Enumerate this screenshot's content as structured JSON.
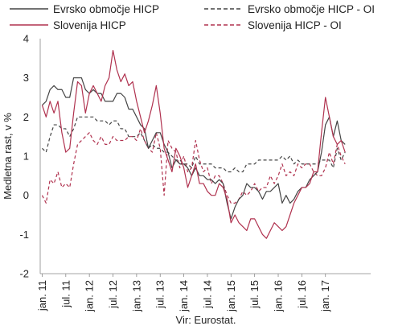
{
  "chart_data": {
    "type": "line",
    "ylabel": "Medletna rast, v %",
    "source": "Vir: Eurostat.",
    "ylim": [
      -2,
      4
    ],
    "yticks": [
      -2,
      -1,
      0,
      1,
      2,
      3,
      4
    ],
    "xlim": [
      "2011-01",
      "2017-12"
    ],
    "xticks": [
      "jan. 11",
      "jul. 11",
      "jan. 12",
      "jul. 12",
      "jan. 13",
      "jul. 13",
      "jan. 14",
      "jul. 14",
      "jan. 15",
      "jul. 15",
      "jan. 16",
      "jul. 16",
      "jan. 17"
    ],
    "legend_position": "top",
    "grid": false,
    "colors": {
      "euro": "#444444",
      "slovenia": "#b0324f"
    },
    "series": [
      {
        "name": "Evrsko območje HICP",
        "style": "solid",
        "color": "#444444",
        "values": [
          2.3,
          2.4,
          2.7,
          2.8,
          2.7,
          2.7,
          2.5,
          2.5,
          3.0,
          3.0,
          3.0,
          2.7,
          2.6,
          2.7,
          2.6,
          2.6,
          2.4,
          2.4,
          2.4,
          2.6,
          2.6,
          2.5,
          2.2,
          2.2,
          2.0,
          1.8,
          1.7,
          1.2,
          1.4,
          1.6,
          1.6,
          1.3,
          1.1,
          0.7,
          0.9,
          0.8,
          0.8,
          0.7,
          0.5,
          0.7,
          0.5,
          0.5,
          0.4,
          0.4,
          0.3,
          0.4,
          0.3,
          -0.2,
          -0.6,
          -0.3,
          -0.1,
          0.0,
          0.3,
          0.2,
          0.2,
          0.1,
          -0.1,
          0.1,
          0.1,
          0.2,
          0.3,
          -0.2,
          0.0,
          -0.2,
          -0.1,
          0.1,
          0.2,
          0.2,
          0.4,
          0.5,
          0.6,
          1.1,
          1.8,
          2.0,
          1.5,
          1.9,
          1.4,
          1.3
        ],
        "x_start": "2011-01",
        "x_step": "month"
      },
      {
        "name": "Evrsko območje HICP - OI",
        "style": "dashed",
        "color": "#444444",
        "values": [
          1.2,
          1.1,
          1.5,
          1.8,
          1.8,
          1.7,
          1.7,
          1.5,
          1.7,
          2.0,
          2.0,
          2.0,
          2.0,
          2.0,
          1.9,
          1.9,
          1.9,
          1.8,
          1.9,
          1.9,
          1.7,
          1.7,
          1.5,
          1.5,
          1.5,
          1.6,
          1.4,
          1.2,
          1.3,
          1.2,
          1.2,
          1.1,
          1.1,
          1.0,
          0.9,
          0.9,
          0.8,
          0.8,
          0.7,
          1.0,
          0.8,
          0.8,
          0.8,
          0.8,
          0.7,
          0.7,
          0.7,
          0.6,
          0.6,
          0.7,
          0.6,
          0.6,
          0.8,
          0.8,
          0.8,
          0.9,
          0.9,
          0.9,
          0.9,
          0.9,
          0.9,
          1.0,
          0.9,
          1.0,
          0.8,
          0.9,
          0.8,
          0.8,
          0.8,
          0.8,
          0.8,
          0.9,
          0.9,
          0.9,
          0.7,
          1.2,
          0.9,
          1.1
        ],
        "x_start": "2011-01",
        "x_step": "month"
      },
      {
        "name": "Slovenija HICP",
        "style": "solid",
        "color": "#b0324f",
        "values": [
          2.3,
          2.0,
          2.4,
          2.1,
          2.4,
          1.6,
          1.1,
          1.2,
          2.1,
          2.9,
          2.8,
          2.1,
          2.6,
          2.8,
          2.6,
          2.4,
          2.8,
          3.0,
          3.7,
          3.2,
          2.9,
          3.1,
          2.8,
          2.9,
          2.4,
          2.0,
          1.6,
          1.9,
          2.3,
          2.8,
          2.1,
          1.2,
          0.9,
          0.6,
          1.2,
          1.0,
          0.7,
          0.2,
          0.5,
          0.8,
          0.3,
          0.3,
          0.1,
          0.0,
          0.0,
          0.3,
          0.2,
          -0.1,
          -0.7,
          -0.5,
          -0.7,
          -0.8,
          -0.9,
          -0.6,
          -0.6,
          -0.8,
          -1.0,
          -1.1,
          -0.9,
          -0.7,
          -0.8,
          -0.9,
          -0.8,
          -0.5,
          -0.2,
          0.0,
          0.2,
          0.2,
          0.3,
          0.6,
          0.6,
          1.6,
          2.5,
          2.0,
          1.5,
          1.3,
          1.4,
          1.1
        ],
        "x_start": "2011-01",
        "x_step": "month"
      },
      {
        "name": "Slovenija HICP - OI",
        "style": "dashed",
        "color": "#b0324f",
        "values": [
          0.0,
          -0.2,
          0.4,
          0.3,
          0.6,
          0.2,
          0.3,
          0.2,
          0.8,
          1.3,
          1.4,
          1.5,
          1.6,
          1.4,
          1.3,
          1.5,
          1.3,
          1.3,
          1.5,
          1.4,
          1.4,
          1.4,
          1.5,
          1.5,
          1.4,
          1.7,
          1.4,
          1.2,
          1.1,
          1.6,
          1.2,
          0.0,
          1.4,
          1.2,
          1.1,
          0.7,
          1.0,
          0.6,
          0.7,
          1.4,
          0.9,
          0.6,
          0.7,
          0.3,
          0.5,
          0.5,
          0.3,
          0.0,
          -0.2,
          -0.2,
          -0.1,
          0.1,
          0.0,
          0.1,
          0.3,
          0.1,
          0.2,
          0.2,
          0.5,
          0.3,
          0.5,
          0.8,
          0.5,
          0.6,
          0.5,
          0.8,
          0.7,
          0.8,
          0.8,
          0.6,
          0.5,
          0.5,
          0.7,
          1.1,
          0.8,
          1.3,
          1.0,
          0.8
        ],
        "x_start": "2011-01",
        "x_step": "month"
      }
    ]
  }
}
